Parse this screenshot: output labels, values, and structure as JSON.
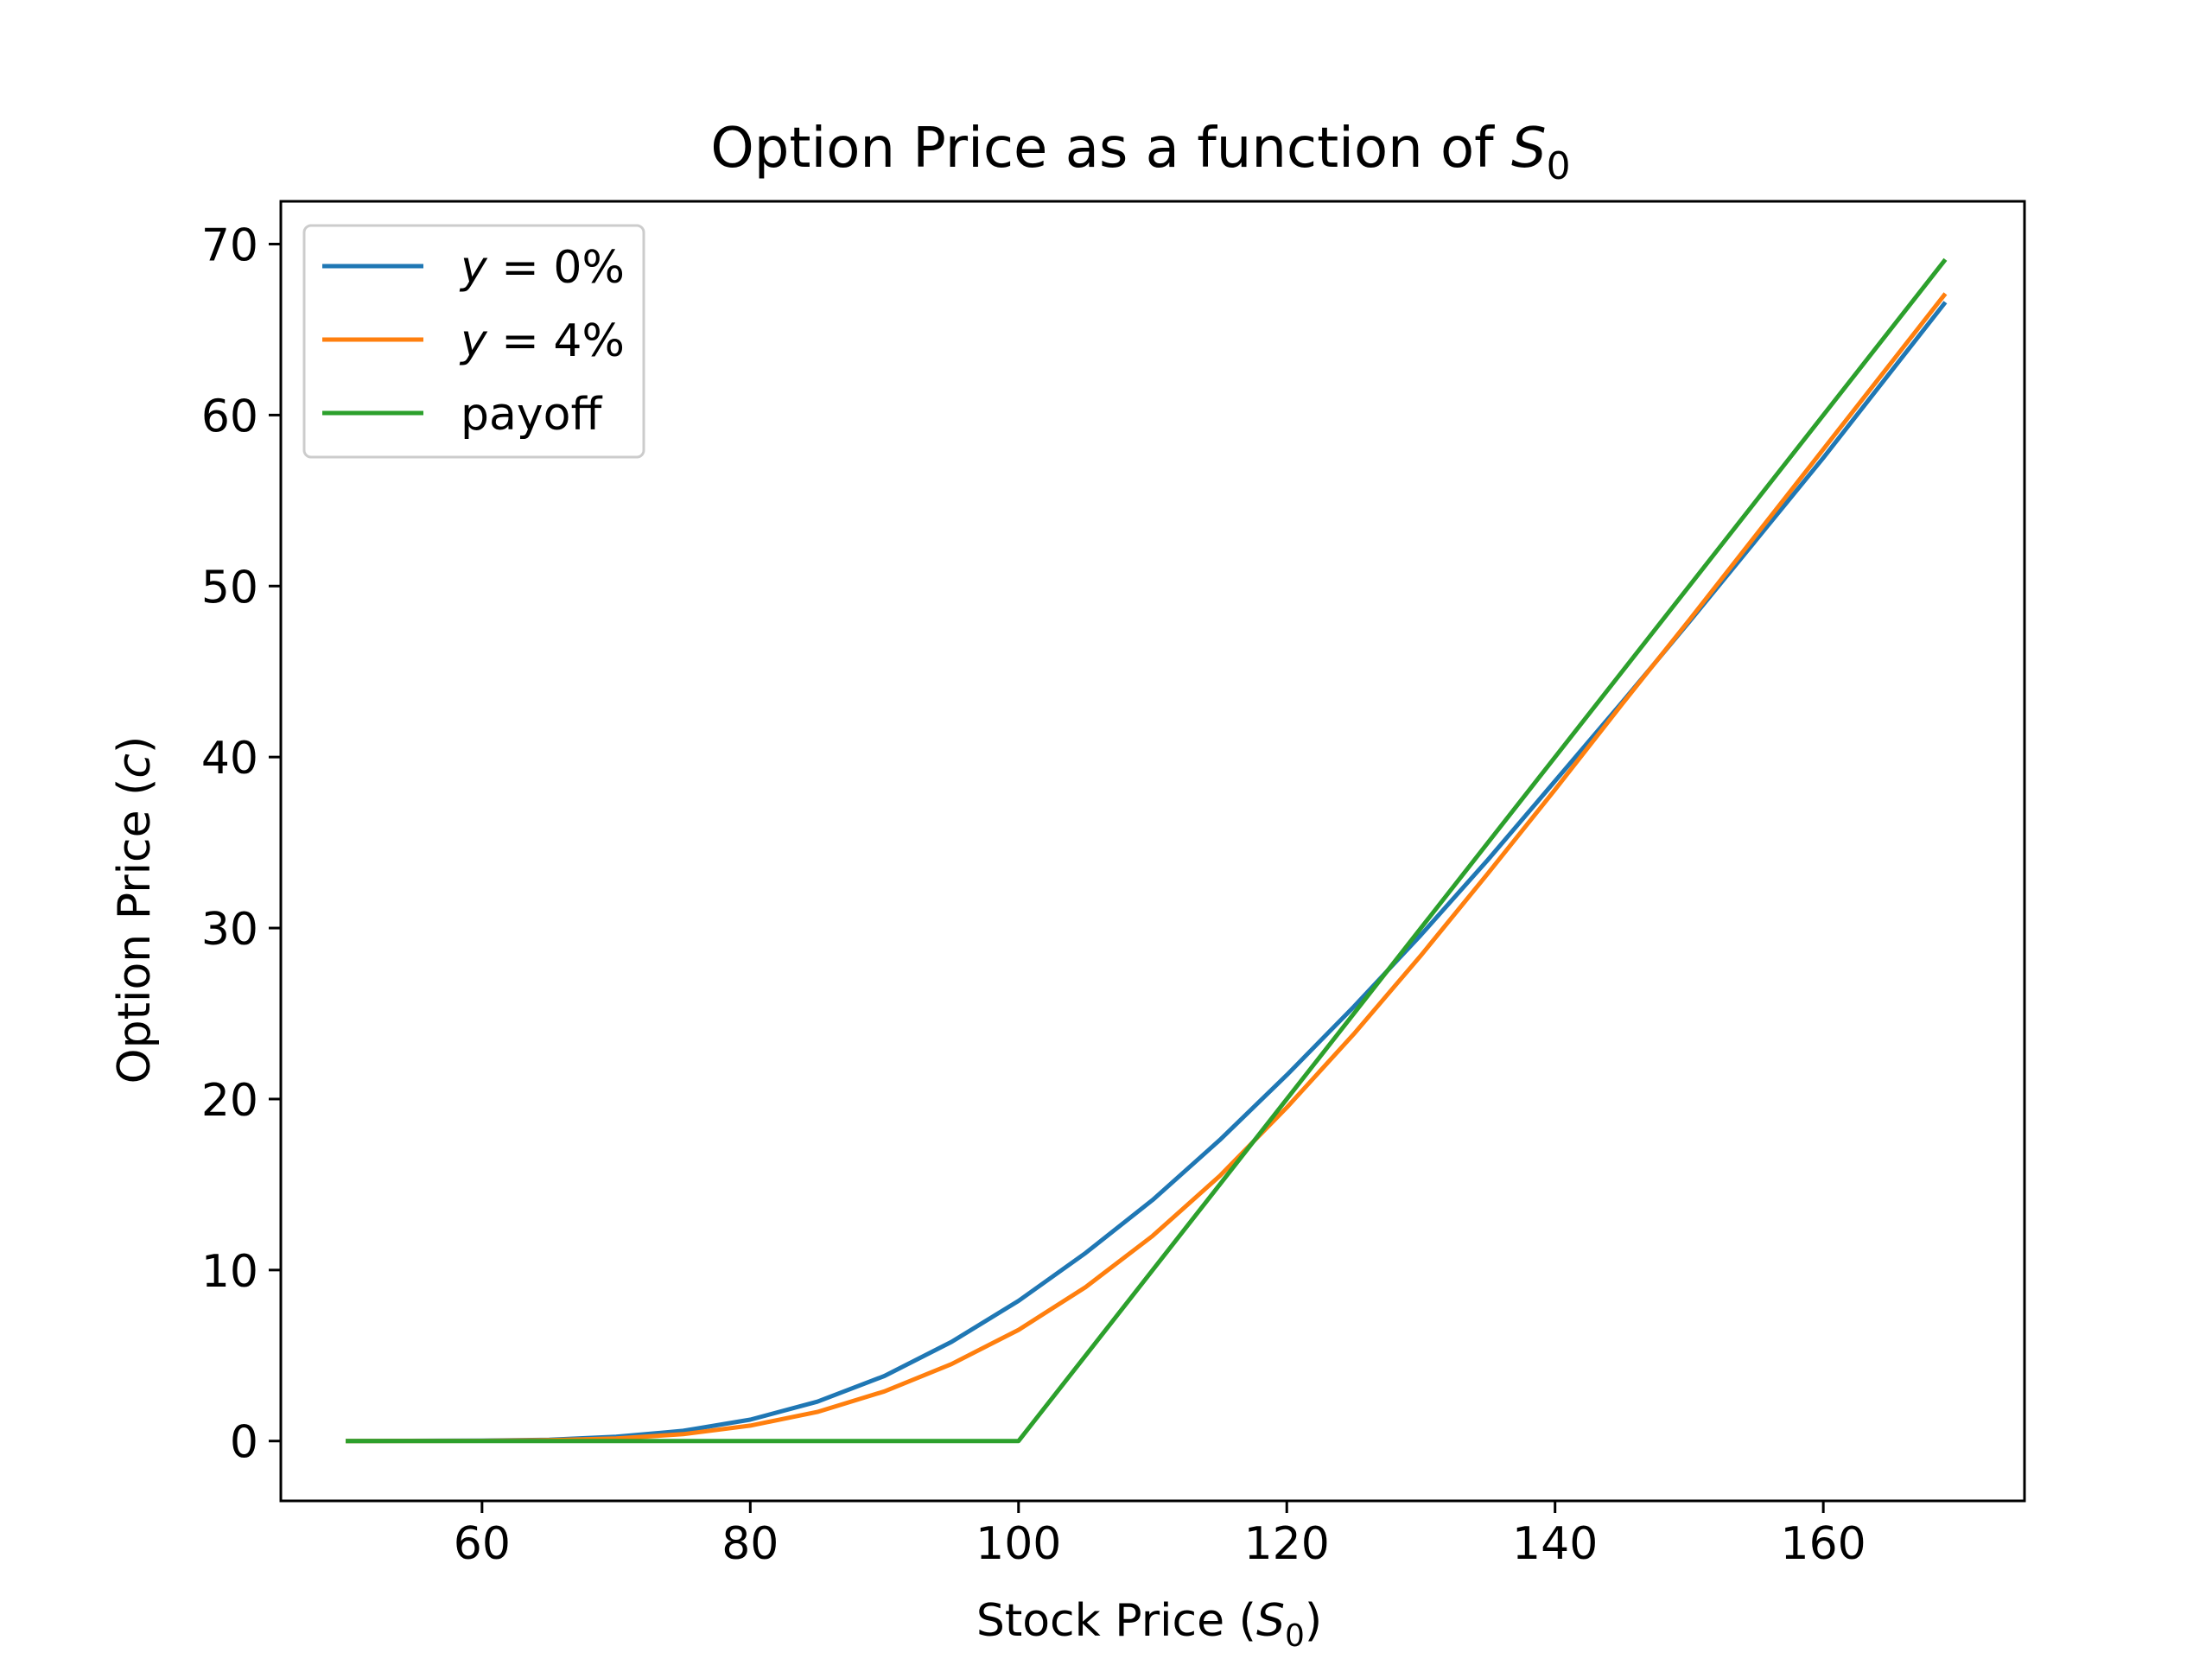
{
  "chart_data": {
    "type": "line",
    "title": {
      "text": "Option Price as a function of ",
      "var": "S",
      "sub": "0"
    },
    "xlabel": {
      "text": "Stock Price (",
      "var": "S",
      "sub": "0",
      "close": ")"
    },
    "ylabel": {
      "text": "Option Price (",
      "var": "c",
      "close": ")"
    },
    "xlim": [
      45,
      175
    ],
    "ylim": [
      -3.5,
      72.5
    ],
    "xticks": [
      60,
      80,
      100,
      120,
      140,
      160
    ],
    "yticks": [
      0,
      10,
      20,
      30,
      40,
      50,
      60,
      70
    ],
    "grid": false,
    "legend_position": "top-left",
    "series": [
      {
        "name": "y = 0%",
        "legend": {
          "var": "y",
          "rest": " = 0%"
        },
        "color": "#1f77b4",
        "x": [
          50,
          60,
          65,
          70,
          75,
          80,
          85,
          90,
          95,
          100,
          105,
          110,
          115,
          120,
          125,
          130,
          135,
          140,
          145,
          150,
          160,
          169
        ],
        "y": [
          0.0,
          0.02,
          0.08,
          0.25,
          0.6,
          1.25,
          2.3,
          3.8,
          5.8,
          8.2,
          11.0,
          14.1,
          17.6,
          21.4,
          25.4,
          29.6,
          34.0,
          38.6,
          43.2,
          47.9,
          57.5,
          66.5
        ]
      },
      {
        "name": "y = 4%",
        "legend": {
          "var": "y",
          "rest": " = 4%"
        },
        "color": "#ff7f0e",
        "x": [
          50,
          60,
          65,
          70,
          75,
          80,
          85,
          90,
          95,
          100,
          105,
          110,
          115,
          120,
          125,
          130,
          135,
          140,
          145,
          150,
          160,
          169
        ],
        "y": [
          0.0,
          0.01,
          0.05,
          0.15,
          0.4,
          0.9,
          1.7,
          2.9,
          4.5,
          6.5,
          9.0,
          12.0,
          15.5,
          19.5,
          23.8,
          28.4,
          33.2,
          38.1,
          43.1,
          48.0,
          58.0,
          67.0
        ]
      },
      {
        "name": "payoff",
        "legend": {
          "var": "",
          "rest": "payoff"
        },
        "color": "#2ca02c",
        "x": [
          50,
          100,
          169
        ],
        "y": [
          0,
          0,
          69
        ]
      }
    ]
  }
}
